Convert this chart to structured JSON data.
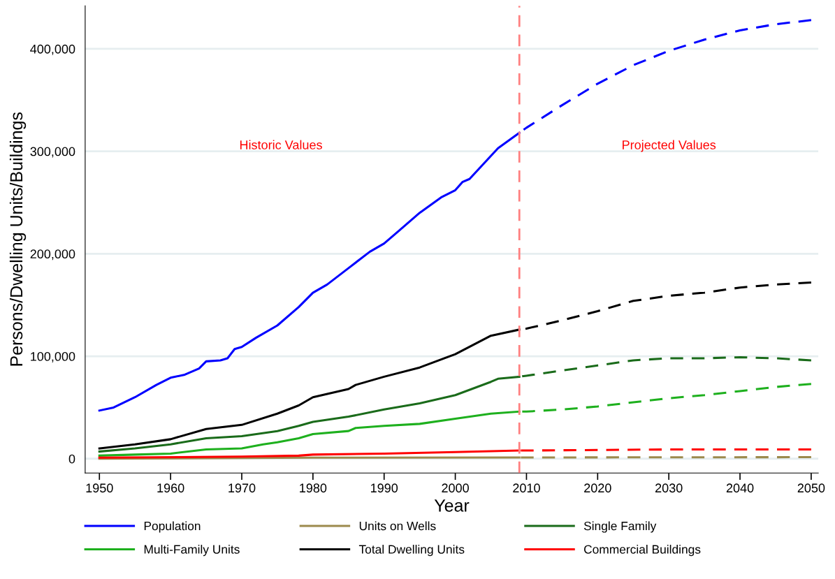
{
  "chart_data": {
    "type": "line",
    "xlabel": "Year",
    "ylabel": "Persons/Dwelling Units/Buildings",
    "xlim": [
      1948,
      2051
    ],
    "xticks": [
      1950,
      1960,
      1970,
      1980,
      1990,
      2000,
      2010,
      2020,
      2030,
      2040,
      2050
    ],
    "ylim": [
      -14000,
      442000
    ],
    "yticks": [
      {
        "value": 0,
        "label": "0"
      },
      {
        "value": 100000,
        "label": "100,000"
      },
      {
        "value": 200000,
        "label": "200,000"
      },
      {
        "value": 300000,
        "label": "300,000"
      },
      {
        "value": 400000,
        "label": "400,000"
      }
    ],
    "grid": "y",
    "legend": "bottom",
    "marker": "none",
    "ref_lines": [
      {
        "axis": "x",
        "value": 2009,
        "color": "#ff8080",
        "line_style": "dashed"
      }
    ],
    "annotations": [
      "Historic Values",
      "Projected Values"
    ],
    "series": [
      {
        "name": "Population",
        "color": "#0000ff",
        "line_style": "solid",
        "x": [
          1950,
          1952,
          1955,
          1958,
          1960,
          1962,
          1964,
          1965,
          1967,
          1968,
          1969,
          1970,
          1972,
          1975,
          1978,
          1980,
          1982,
          1985,
          1988,
          1990,
          1992,
          1995,
          1998,
          2000,
          2001,
          2002,
          2004,
          2006,
          2008,
          2009
        ],
        "values": [
          47000,
          50000,
          60000,
          72000,
          79000,
          82000,
          88000,
          95000,
          96000,
          98000,
          107000,
          109000,
          118000,
          130000,
          148000,
          162000,
          170000,
          186000,
          202000,
          210000,
          222000,
          240000,
          255000,
          262000,
          270000,
          273000,
          288000,
          303000,
          313000,
          318000
        ]
      },
      {
        "name": "Units on Wells",
        "color": "#9c8a4d",
        "line_style": "solid",
        "x": [
          1950,
          1980,
          2009
        ],
        "values": [
          0,
          1000,
          1200
        ]
      },
      {
        "name": "Single Family",
        "color": "#1a6b1a",
        "line_style": "solid",
        "x": [
          1950,
          1955,
          1960,
          1965,
          1970,
          1975,
          1978,
          1980,
          1985,
          1990,
          1995,
          2000,
          2005,
          2006,
          2009
        ],
        "values": [
          7000,
          10000,
          14000,
          20000,
          22000,
          27000,
          32000,
          36000,
          41000,
          48000,
          54000,
          62000,
          75000,
          78000,
          80000
        ]
      },
      {
        "name": "Multi-Family Units",
        "color": "#1eb01e",
        "line_style": "solid",
        "x": [
          1950,
          1955,
          1960,
          1965,
          1970,
          1973,
          1975,
          1978,
          1980,
          1985,
          1986,
          1990,
          1995,
          2000,
          2005,
          2009
        ],
        "values": [
          3000,
          4000,
          5000,
          9000,
          10000,
          14000,
          16000,
          20000,
          24000,
          27000,
          30000,
          32000,
          34000,
          39000,
          44000,
          46000
        ]
      },
      {
        "name": "Total Dwelling Units",
        "color": "#000000",
        "line_style": "solid",
        "x": [
          1950,
          1955,
          1960,
          1965,
          1970,
          1975,
          1978,
          1980,
          1985,
          1986,
          1990,
          1995,
          2000,
          2005,
          2009
        ],
        "values": [
          10000,
          14000,
          19000,
          29000,
          33000,
          44000,
          52000,
          60000,
          68000,
          72000,
          80000,
          89000,
          102000,
          120000,
          126000
        ]
      },
      {
        "name": "Commercial Buildings",
        "color": "#ff0000",
        "line_style": "solid",
        "x": [
          1950,
          1970,
          1978,
          1980,
          1990,
          2000,
          2009
        ],
        "values": [
          1000,
          2000,
          3000,
          4000,
          5000,
          6500,
          8000
        ]
      },
      {
        "color": "#0000ff",
        "line_style": "dashed",
        "x": [
          2009,
          2010,
          2015,
          2020,
          2025,
          2030,
          2035,
          2040,
          2045,
          2050
        ],
        "values": [
          318000,
          323000,
          345000,
          366000,
          384000,
          398000,
          409000,
          418000,
          424000,
          428000
        ]
      },
      {
        "color": "#9c8a4d",
        "line_style": "dashed",
        "x": [
          2009,
          2050
        ],
        "values": [
          1200,
          1500
        ]
      },
      {
        "color": "#1a6b1a",
        "line_style": "dashed",
        "x": [
          2009,
          2010,
          2015,
          2020,
          2025,
          2030,
          2035,
          2040,
          2045,
          2050
        ],
        "values": [
          80000,
          81000,
          86000,
          91000,
          96000,
          98000,
          98000,
          99000,
          98000,
          96000
        ]
      },
      {
        "color": "#1eb01e",
        "line_style": "dashed",
        "x": [
          2009,
          2010,
          2015,
          2020,
          2025,
          2030,
          2035,
          2040,
          2045,
          2050
        ],
        "values": [
          46000,
          46000,
          48000,
          51000,
          55000,
          59000,
          62000,
          66000,
          70000,
          73000
        ]
      },
      {
        "color": "#000000",
        "line_style": "dashed",
        "x": [
          2009,
          2010,
          2015,
          2020,
          2025,
          2030,
          2035,
          2040,
          2045,
          2050
        ],
        "values": [
          126000,
          127000,
          135000,
          144000,
          154000,
          159000,
          162000,
          167000,
          170000,
          172000
        ]
      },
      {
        "color": "#ff0000",
        "line_style": "dashed",
        "x": [
          2009,
          2010,
          2030,
          2050
        ],
        "values": [
          8000,
          8000,
          9000,
          9000
        ]
      }
    ]
  }
}
